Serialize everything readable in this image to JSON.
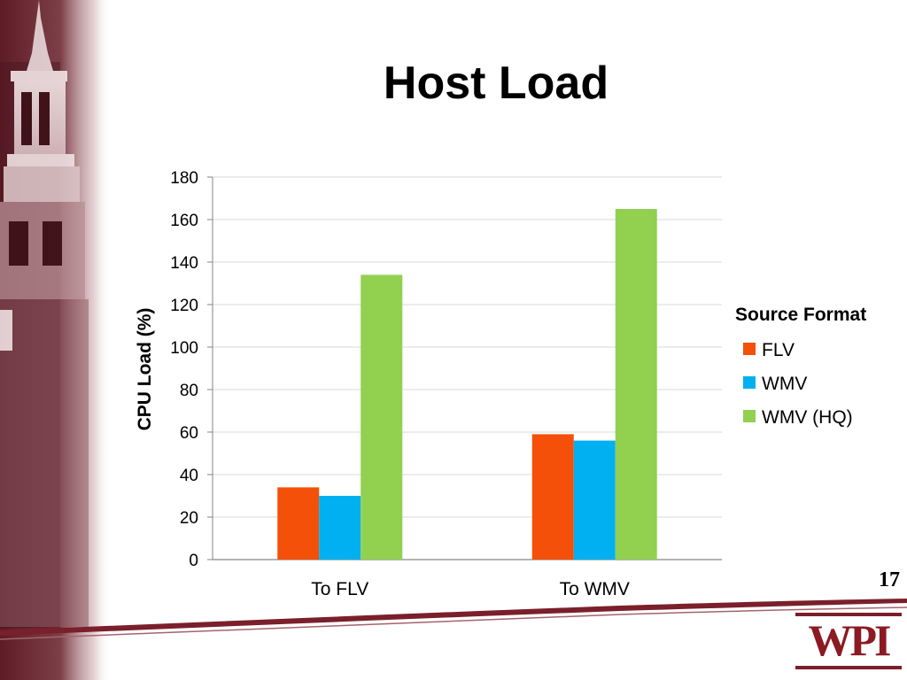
{
  "slide": {
    "title": "Host Load",
    "page_number": "17",
    "logo_text": "WPI"
  },
  "colors": {
    "flv": "#f4500a",
    "wmv": "#00b0f0",
    "wmv_hq": "#92d050",
    "gridline": "#d9d9d9",
    "axis": "#868686",
    "brand_maroon": "#7a1f2b"
  },
  "chart_data": {
    "type": "bar",
    "categories": [
      "To FLV",
      "To WMV"
    ],
    "series": [
      {
        "name": "FLV",
        "values": [
          34,
          59
        ],
        "color": "#f4500a"
      },
      {
        "name": "WMV",
        "values": [
          30,
          56
        ],
        "color": "#00b0f0"
      },
      {
        "name": "WMV (HQ)",
        "values": [
          134,
          165
        ],
        "color": "#92d050"
      }
    ],
    "ylabel": "CPU Load (%)",
    "ylim": [
      0,
      180
    ],
    "yticks": [
      0,
      20,
      40,
      60,
      80,
      100,
      120,
      140,
      160,
      180
    ],
    "grid": true,
    "legend_title": "Source Format",
    "legend_position": "right"
  }
}
